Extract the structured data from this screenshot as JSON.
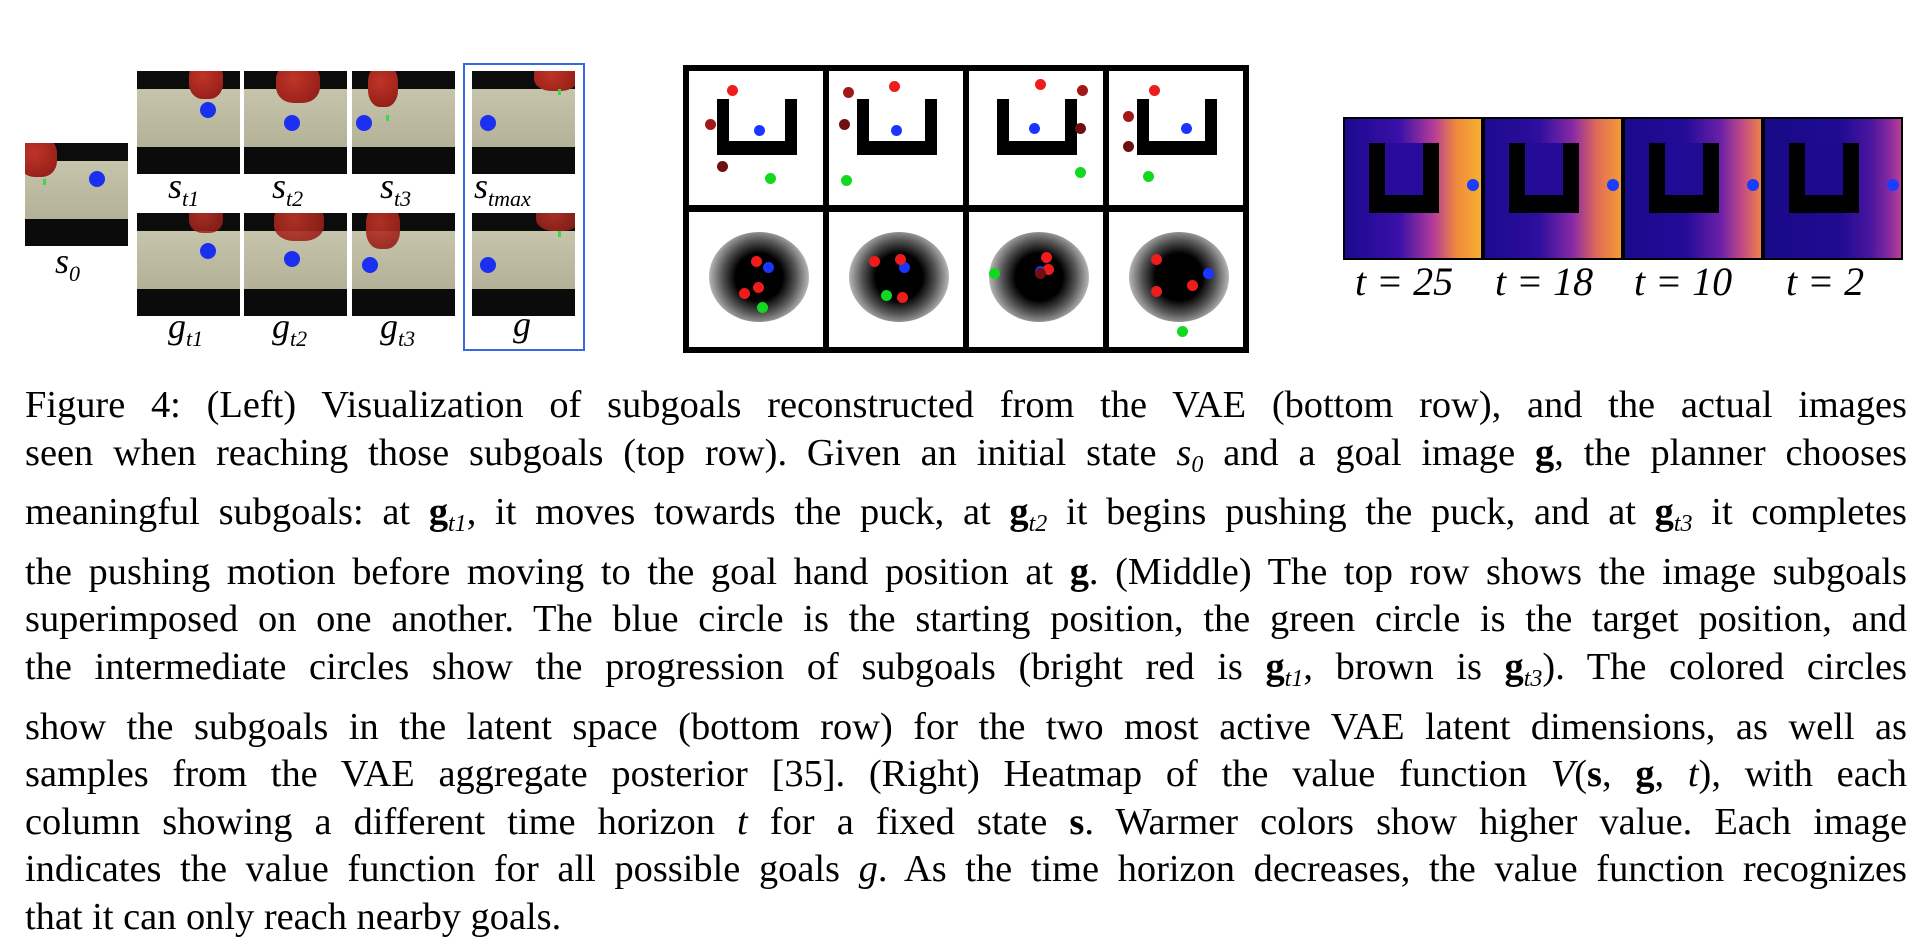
{
  "left_panel": {
    "labels": {
      "s0": "s",
      "s0_sub": "0",
      "st1": "s",
      "st1_sub": "t1",
      "st2": "s",
      "st2_sub": "t2",
      "st3": "s",
      "st3_sub": "t3",
      "stmax": "s",
      "stmax_sub": "tmax",
      "gt1": "g",
      "gt1_sub": "t1",
      "gt2": "g",
      "gt2_sub": "t2",
      "gt3": "g",
      "gt3_sub": "t3",
      "g": "g"
    },
    "highlight_color": "#3a66e8"
  },
  "middle_panel": {
    "colors": {
      "start": "#1a35ff",
      "target": "#12d820",
      "bright_red": "#ee1c1c",
      "brown": "#6e1010"
    }
  },
  "right_panel": {
    "labels": [
      "t = 25",
      "t = 18",
      "t = 10",
      "t = 2"
    ]
  },
  "caption": {
    "lines": [
      [
        "Figure 4: ",
        "(Left) Visualization of subgoals reconstructed from the VAE (bottom row), and the actual images"
      ],
      [
        "seen when reaching those subgoals (top row). Given an initial state ",
        "s",
        "0",
        " and a goal image ",
        "g",
        ", the planner chooses"
      ],
      [
        "meaningful subgoals: at ",
        "g",
        "t1",
        ", it moves towards the puck, at ",
        "g",
        "t2",
        " it begins pushing the puck, and at ",
        "g",
        "t3",
        " it completes"
      ],
      [
        "the pushing motion before moving to the goal hand position at ",
        "g",
        ". (Middle) The top row shows the image subgoals"
      ],
      [
        "superimposed on one another. The blue circle is the starting position, the green circle is the target position, and"
      ],
      [
        "the intermediate circles show the progression of subgoals (bright red is ",
        "g",
        "t1",
        ", brown is ",
        "g",
        "t3",
        "). The colored circles"
      ],
      [
        "show the subgoals in the latent space (bottom row) for the two most active VAE latent dimensions, as well as"
      ],
      [
        "samples from the VAE aggregate posterior [35]. (Right) Heatmap of the value function ",
        "V",
        "(",
        "s",
        ", ",
        "g",
        ", ",
        "t",
        "), with each"
      ],
      [
        "column showing a different time horizon ",
        "t",
        " for a fixed state ",
        "s",
        ". Warmer colors show higher value. Each image"
      ],
      [
        "indicates the value function for all possible goals ",
        "g",
        ". As the time horizon decreases, the value function recognizes"
      ],
      [
        "that it can only reach nearby goals."
      ]
    ]
  }
}
